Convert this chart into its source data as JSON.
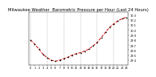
{
  "title": "Milwaukee Weather  Barometric Pressure per Hour (Last 24 Hours)",
  "background_color": "#ffffff",
  "line_color": "#cc0000",
  "marker_color": "#000000",
  "grid_color": "#888888",
  "hours": [
    0,
    1,
    2,
    3,
    4,
    5,
    6,
    7,
    8,
    9,
    10,
    11,
    12,
    13,
    14,
    15,
    16,
    17,
    18,
    19,
    20,
    21,
    22,
    23
  ],
  "pressure": [
    29.8,
    29.72,
    29.62,
    29.52,
    29.45,
    29.4,
    29.38,
    29.4,
    29.43,
    29.46,
    29.5,
    29.53,
    29.55,
    29.58,
    29.62,
    29.68,
    29.75,
    29.85,
    29.95,
    30.05,
    30.12,
    30.18,
    30.22,
    30.25
  ],
  "ylim": [
    29.3,
    30.35
  ],
  "ytick_min": 29.4,
  "ytick_max": 30.3,
  "ytick_step": 0.1,
  "title_fontsize": 3.8,
  "tick_fontsize": 2.5,
  "line_width": 0.7,
  "marker_size": 1.5,
  "xtick_every": 1,
  "grid_every": 4
}
